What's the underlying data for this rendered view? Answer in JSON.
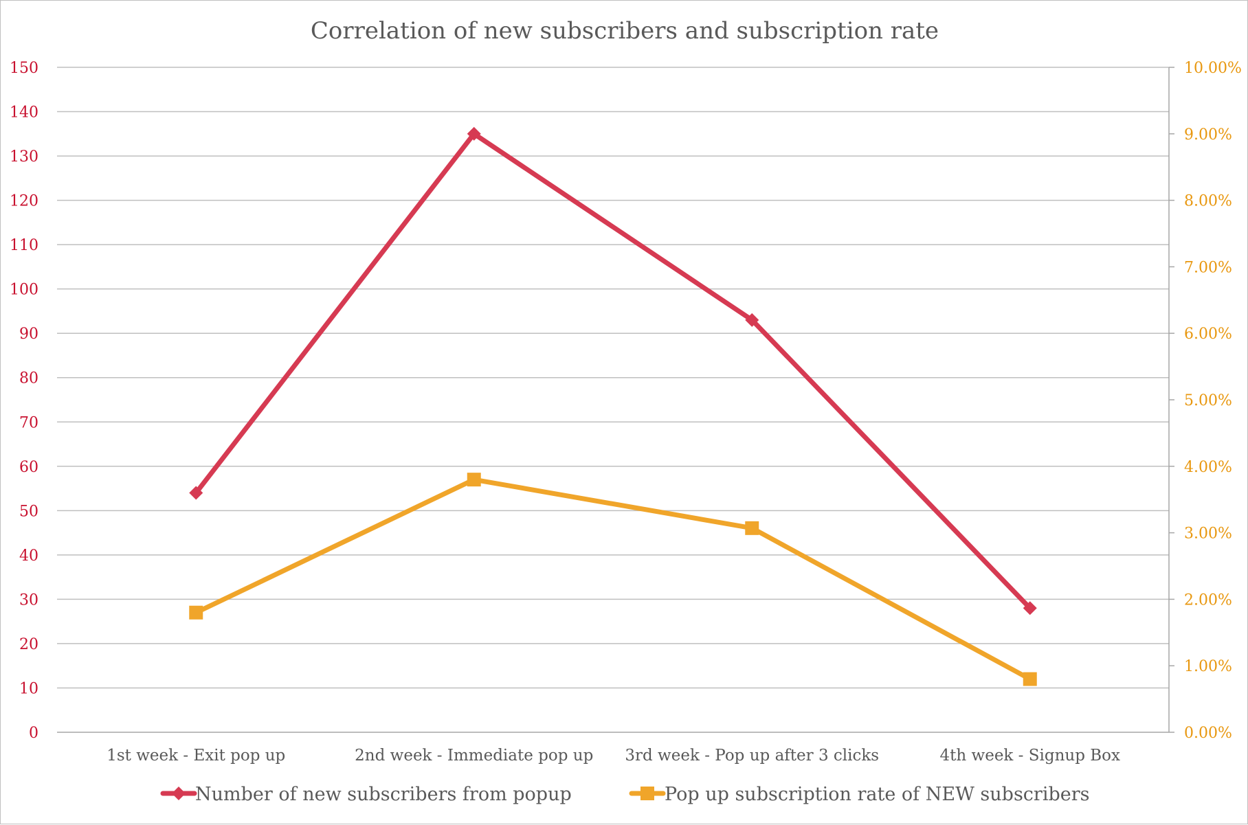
{
  "chart_data": {
    "type": "line",
    "title": "Correlation of new subscribers and subscription rate",
    "categories": [
      "1st week - Exit pop up",
      "2nd week -  Immediate pop up",
      "3rd week - Pop up after 3 clicks",
      "4th week - Signup Box"
    ],
    "series": [
      {
        "name": "Number of new subscribers from popup",
        "axis": "left",
        "marker": "diamond",
        "color": "#d63a52",
        "values": [
          54,
          135,
          93,
          28
        ]
      },
      {
        "name": "Pop up subscription rate of NEW subscribers",
        "axis": "right",
        "marker": "square",
        "color": "#f0a52a",
        "values": [
          0.018,
          0.038,
          0.0307,
          0.008
        ]
      }
    ],
    "y_left": {
      "ylim": [
        0,
        150
      ],
      "ticks": [
        0,
        10,
        20,
        30,
        40,
        50,
        60,
        70,
        80,
        90,
        100,
        110,
        120,
        130,
        140,
        150
      ],
      "tick_labels": [
        "0",
        "10",
        "20",
        "30",
        "40",
        "50",
        "60",
        "70",
        "80",
        "90",
        "100",
        "110",
        "120",
        "130",
        "140",
        "150"
      ],
      "color": "#c8102e"
    },
    "y_right": {
      "ylim": [
        0,
        0.1
      ],
      "ticks": [
        0,
        0.01,
        0.02,
        0.03,
        0.04,
        0.05,
        0.06,
        0.07,
        0.08,
        0.09,
        0.1
      ],
      "tick_labels": [
        "0.00%",
        "1.00%",
        "2.00%",
        "3.00%",
        "4.00%",
        "5.00%",
        "6.00%",
        "7.00%",
        "8.00%",
        "9.00%",
        "10.00%"
      ],
      "color": "#e8970f"
    },
    "grid": true,
    "legend_position": "bottom"
  }
}
